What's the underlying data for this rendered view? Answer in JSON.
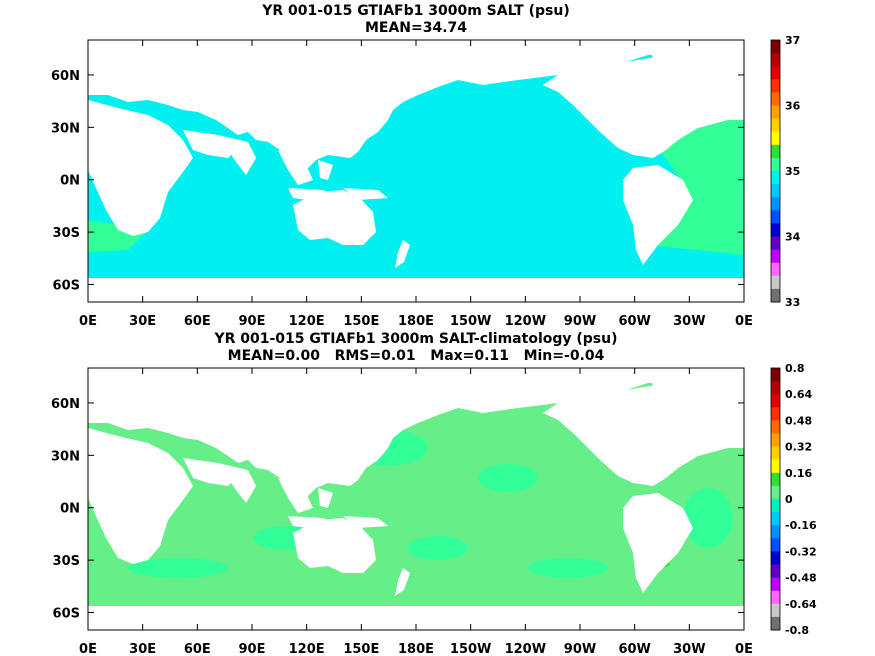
{
  "panels": [
    {
      "title": "YR 001-015 GTIAFb1 3000m SALT (psu)",
      "subtitle": "MEAN=34.74",
      "lat_labels": [
        "60N",
        "30N",
        "0N",
        "30S",
        "60S"
      ],
      "lon_labels": [
        "0E",
        "30E",
        "60E",
        "90E",
        "120E",
        "150E",
        "180E",
        "150W",
        "120W",
        "90W",
        "60W",
        "30W",
        "0E"
      ],
      "colorbar_labels": [
        "37",
        "36",
        "35",
        "34",
        "33"
      ],
      "colorbar_colors": [
        "#7f0000",
        "#b00000",
        "#e00000",
        "#ff3000",
        "#ff6a00",
        "#ffa000",
        "#ffd000",
        "#ffff00",
        "#30e030",
        "#33ff99",
        "#00f0f0",
        "#00c8ff",
        "#0090ff",
        "#0050ff",
        "#0000d0",
        "#6000c0",
        "#c000ff",
        "#ff66ff",
        "#c8c8c8",
        "#707070"
      ],
      "ocean_colors": {
        "main": "#00f0f0",
        "atlantic": "#33ff99"
      }
    },
    {
      "title": "YR 001-015 GTIAFb1 3000m SALT-climatology (psu)",
      "subtitle": "MEAN=0.00   RMS=0.01   Max=0.11   Min=-0.04",
      "lat_labels": [
        "60N",
        "30N",
        "0N",
        "30S",
        "60S"
      ],
      "lon_labels": [
        "0E",
        "30E",
        "60E",
        "90E",
        "120E",
        "150E",
        "180E",
        "150W",
        "120W",
        "90W",
        "60W",
        "30W",
        "0E"
      ],
      "colorbar_labels": [
        "0.8",
        "0.64",
        "0.48",
        "0.32",
        "0.16",
        "0",
        "-0.16",
        "-0.32",
        "-0.48",
        "-0.64",
        "-0.8"
      ],
      "colorbar_colors": [
        "#7f0000",
        "#b00000",
        "#e00000",
        "#ff3000",
        "#ff6a00",
        "#ffa000",
        "#ffd000",
        "#ffff00",
        "#30e030",
        "#66ee88",
        "#00f0c0",
        "#00c8ff",
        "#0090ff",
        "#0050ff",
        "#0000d0",
        "#6000c0",
        "#c000ff",
        "#ff66ff",
        "#c8c8c8",
        "#707070"
      ],
      "ocean_colors": {
        "main": "#66ee88",
        "alt": "#33ff99"
      }
    }
  ]
}
